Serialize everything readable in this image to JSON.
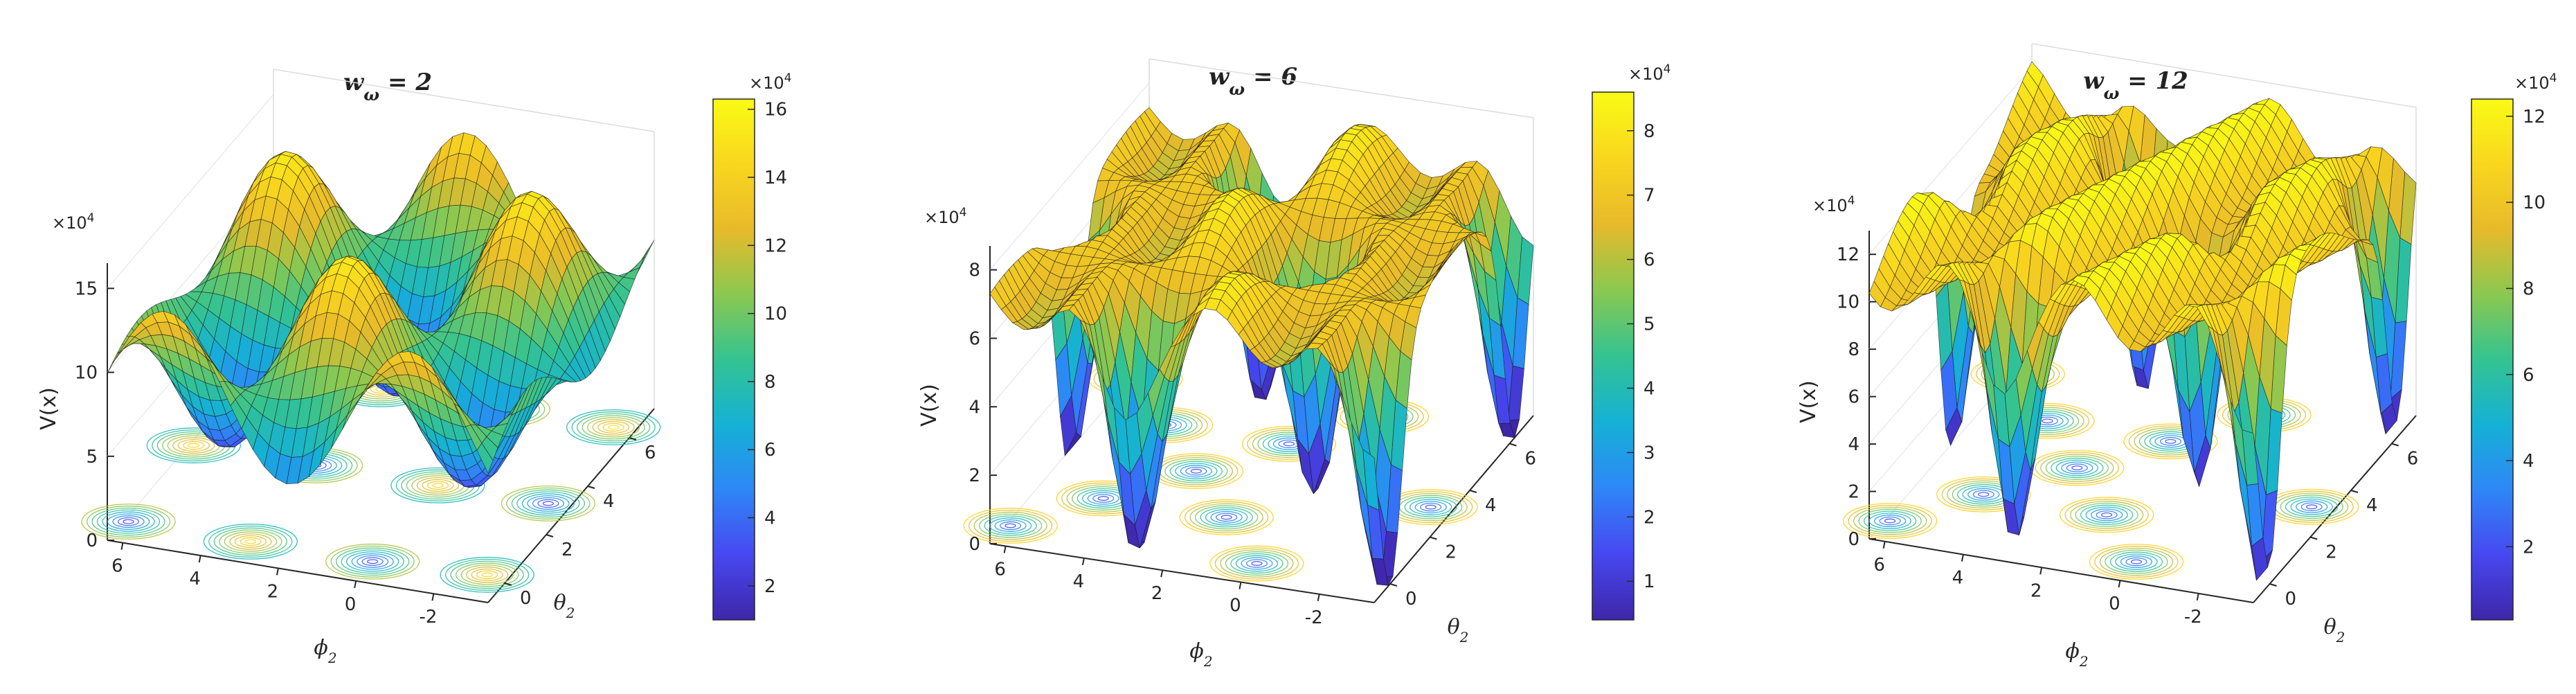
{
  "colormap": [
    "#3e26a8",
    "#4748f1",
    "#2e87f7",
    "#15b1d5",
    "#34c391",
    "#8bc850",
    "#e7ba2a",
    "#f9d61e",
    "#f9fb15"
  ],
  "chart_data": [
    {
      "type": "surface",
      "title_prefix": "w",
      "title_sub": "ω",
      "title_suffix": " = 2",
      "w": 2,
      "zlabel": "V(x)",
      "xlabel_main": "ϕ",
      "xlabel_sub": "2",
      "ylabel_main": "θ",
      "ylabel_sub": "2",
      "z_multiplier": "×10",
      "z_multiplier_exp": "4",
      "zticks": [
        "0",
        "5",
        "10",
        "15"
      ],
      "zlim": [
        0,
        16.5
      ],
      "phi_ticks": [
        "6",
        "4",
        "2",
        "0",
        "-2"
      ],
      "theta_ticks": [
        "0",
        "2",
        "4",
        "6"
      ],
      "colorbar": {
        "multiplier": "×10",
        "multiplier_exp": "4",
        "ticks": [
          "2",
          "4",
          "6",
          "8",
          "10",
          "12",
          "14",
          "16"
        ],
        "range": [
          1.0,
          16.3
        ]
      }
    },
    {
      "type": "surface",
      "title_prefix": "w",
      "title_sub": "ω",
      "title_suffix": " = 6",
      "w": 6,
      "zlabel": "V(x)",
      "xlabel_main": "ϕ",
      "xlabel_sub": "2",
      "ylabel_main": "θ",
      "ylabel_sub": "2",
      "z_multiplier": "×10",
      "z_multiplier_exp": "4",
      "zticks": [
        "0",
        "2",
        "4",
        "6",
        "8"
      ],
      "zlim": [
        0,
        8.7
      ],
      "phi_ticks": [
        "6",
        "4",
        "2",
        "0",
        "-2"
      ],
      "theta_ticks": [
        "0",
        "2",
        "4",
        "6"
      ],
      "colorbar": {
        "multiplier": "×10",
        "multiplier_exp": "4",
        "ticks": [
          "1",
          "2",
          "3",
          "4",
          "5",
          "6",
          "7",
          "8"
        ],
        "range": [
          0.4,
          8.6
        ]
      }
    },
    {
      "type": "surface",
      "title_prefix": "w",
      "title_sub": "ω",
      "title_suffix": " = 12",
      "w": 12,
      "zlabel": "V(x)",
      "xlabel_main": "ϕ",
      "xlabel_sub": "2",
      "ylabel_main": "θ",
      "ylabel_sub": "2",
      "z_multiplier": "×10",
      "z_multiplier_exp": "4",
      "zticks": [
        "0",
        "2",
        "4",
        "6",
        "8",
        "10",
        "12"
      ],
      "zlim": [
        0,
        13
      ],
      "phi_ticks": [
        "6",
        "4",
        "2",
        "0",
        "-2"
      ],
      "theta_ticks": [
        "0",
        "2",
        "4",
        "6"
      ],
      "colorbar": {
        "multiplier": "×10",
        "multiplier_exp": "4",
        "ticks": [
          "2",
          "4",
          "6",
          "8",
          "10",
          "12"
        ],
        "range": [
          0.3,
          12.4
        ]
      }
    }
  ]
}
